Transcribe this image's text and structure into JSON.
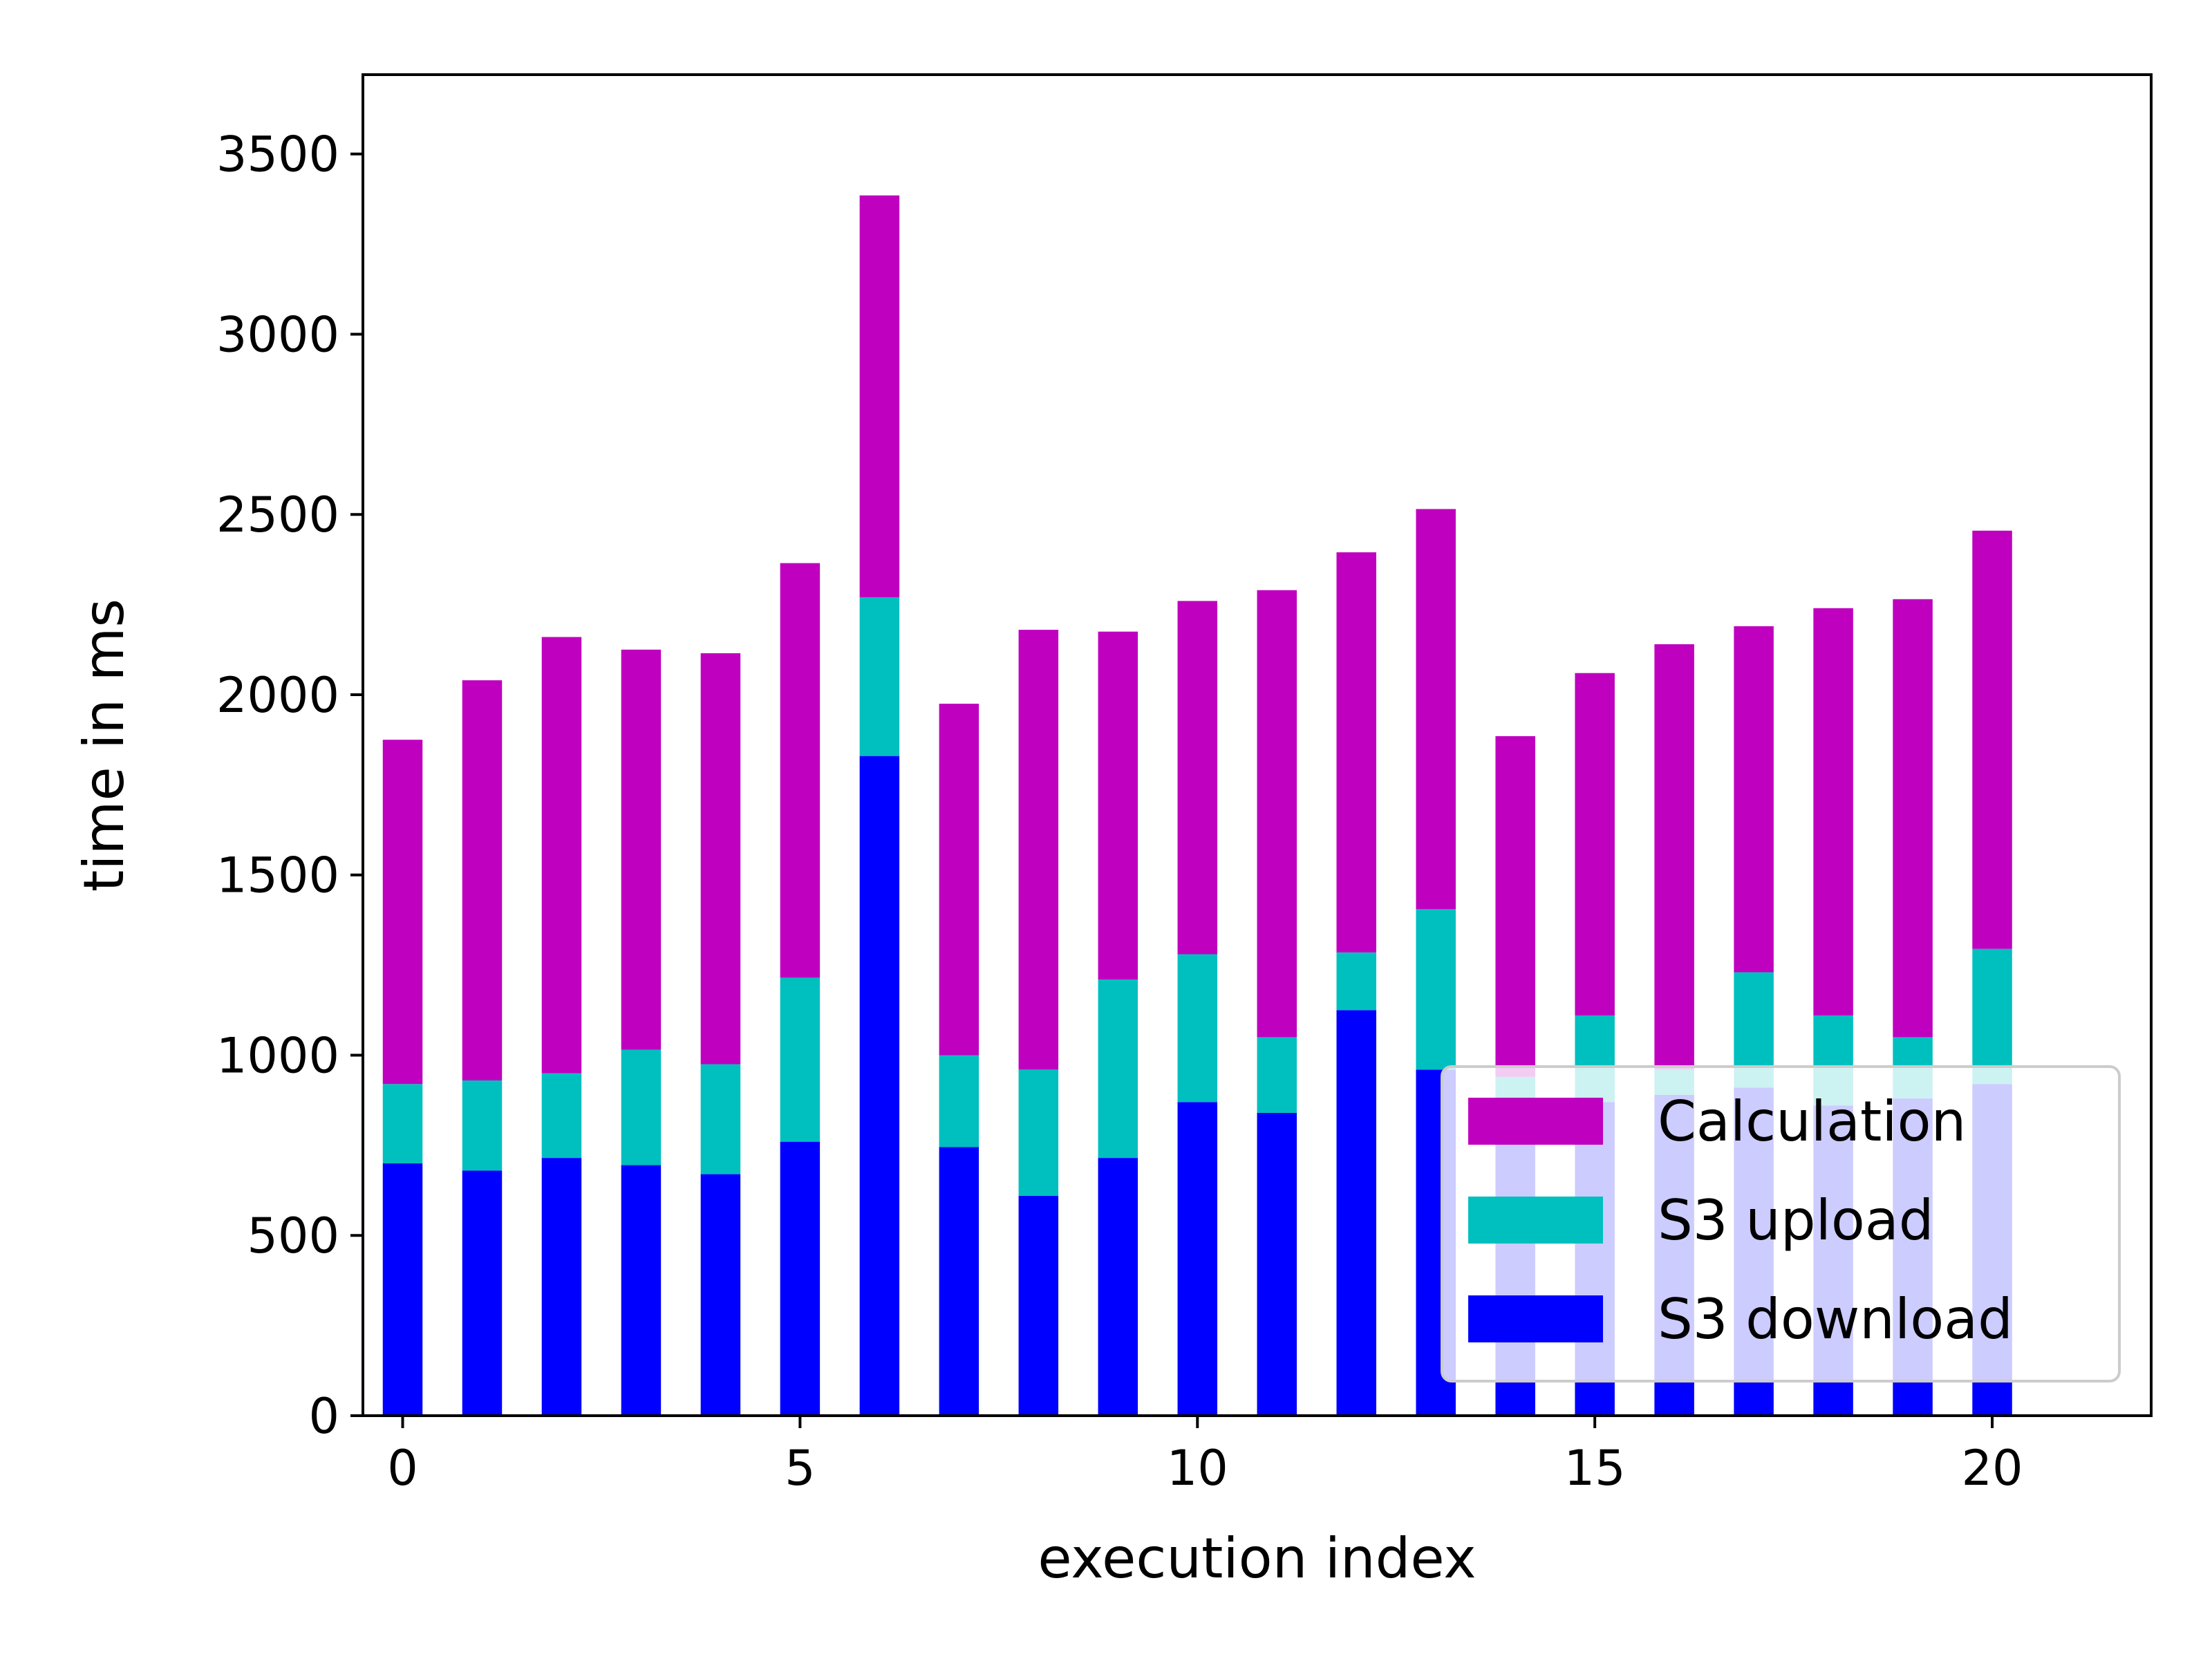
{
  "chart_data": {
    "type": "bar",
    "stacked": true,
    "title": "",
    "xlabel": "execution index",
    "ylabel": "time in ms",
    "x": [
      0,
      1,
      2,
      3,
      4,
      5,
      6,
      7,
      8,
      9,
      10,
      11,
      12,
      13,
      14,
      15,
      16,
      17,
      18,
      19,
      20
    ],
    "xlim": [
      -0.5,
      22
    ],
    "ylim": [
      0,
      3720
    ],
    "xticks": [
      0,
      5,
      10,
      15,
      20
    ],
    "yticks": [
      0,
      500,
      1000,
      1500,
      2000,
      2500,
      3000,
      3500
    ],
    "grid": false,
    "legend_position": "lower-right",
    "legend_order": [
      "Calculation",
      "S3 upload",
      "S3 download"
    ],
    "series": [
      {
        "name": "S3 download",
        "color": "#0000ff",
        "values": [
          700,
          680,
          715,
          695,
          670,
          760,
          1830,
          745,
          610,
          715,
          870,
          840,
          1125,
          960,
          880,
          870,
          890,
          910,
          860,
          880,
          920
        ]
      },
      {
        "name": "S3 upload",
        "color": "#00bfbf",
        "values": [
          220,
          250,
          235,
          320,
          305,
          455,
          440,
          255,
          350,
          495,
          410,
          210,
          160,
          445,
          60,
          240,
          70,
          320,
          250,
          170,
          375
        ]
      },
      {
        "name": "Calculation",
        "color": "#bf00bf",
        "values": [
          955,
          1110,
          1210,
          1110,
          1140,
          1150,
          1115,
          975,
          1220,
          965,
          980,
          1240,
          1110,
          1110,
          945,
          950,
          1180,
          960,
          1130,
          1215,
          1160
        ]
      }
    ]
  }
}
